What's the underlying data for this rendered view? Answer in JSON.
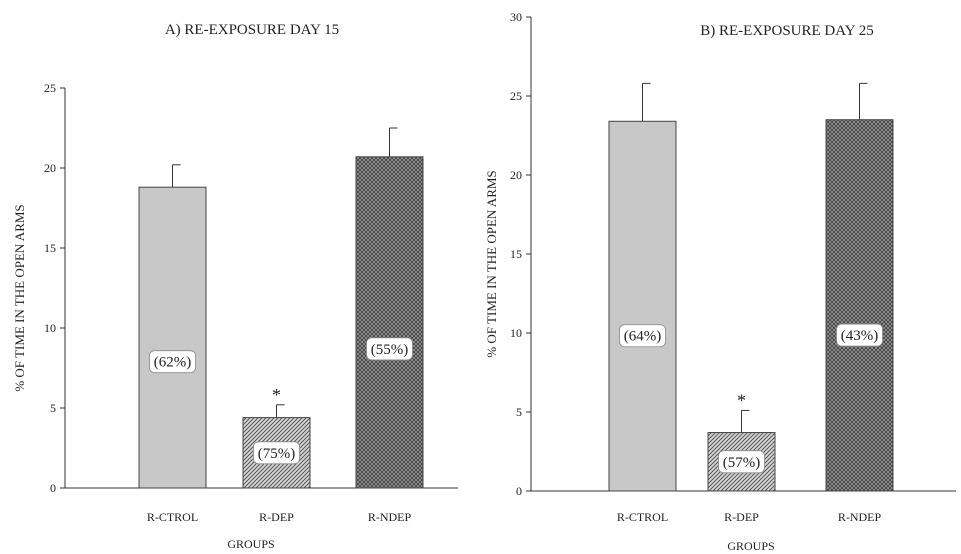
{
  "chart_data": [
    {
      "type": "bar",
      "title": "A) RE-EXPOSURE DAY 15",
      "xlabel": "GROUPS",
      "ylabel": "% OF TIME IN THE OPEN ARMS",
      "ylim": [
        0,
        25
      ],
      "yticks": [
        0,
        5,
        10,
        15,
        20,
        25
      ],
      "categories": [
        "R-CTROL",
        "R-DEP",
        "R-NDEP"
      ],
      "values": [
        18.8,
        4.4,
        20.7
      ],
      "errors": [
        1.4,
        0.8,
        1.8
      ],
      "bar_labels": [
        "(62%)",
        "(75%)",
        "(55%)"
      ],
      "significance": [
        "",
        "*",
        ""
      ],
      "patterns": [
        "solid-gray",
        "diagonal-hatch",
        "crosshatch-dark"
      ]
    },
    {
      "type": "bar",
      "title": "B) RE-EXPOSURE DAY 25",
      "xlabel": "GROUPS",
      "ylabel": "% OF TIME IN THE OPEN ARMS",
      "ylim": [
        0,
        30
      ],
      "yticks": [
        0,
        5,
        10,
        15,
        20,
        25,
        30
      ],
      "categories": [
        "R-CTROL",
        "R-DEP",
        "R-NDEP"
      ],
      "values": [
        23.4,
        3.7,
        23.5
      ],
      "errors": [
        2.4,
        1.4,
        2.3
      ],
      "bar_labels": [
        "(64%)",
        "(57%)",
        "(43%)"
      ],
      "significance": [
        "",
        "*",
        ""
      ],
      "patterns": [
        "solid-gray",
        "diagonal-hatch",
        "crosshatch-dark"
      ]
    }
  ]
}
